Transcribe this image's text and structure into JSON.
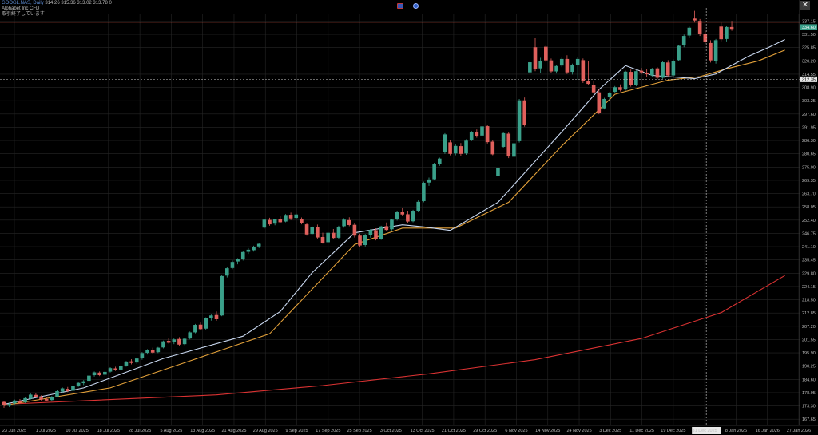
{
  "header": {
    "symbol": "GOOGL.NAS",
    "timeframe": "Daily",
    "ohlc": "314.26 315.36 313.02 313.78 0",
    "name": "Alphabet Inc CFD",
    "status": "取引終了しています"
  },
  "icons": [
    "flag-icon",
    "clock-icon",
    "close-icon"
  ],
  "colors": {
    "background": "#000000",
    "grid": "#262626",
    "bull": "#3aa08a",
    "bear": "#e0605c",
    "ma_fast": "#c9d8f0",
    "ma_mid": "#e3a13a",
    "ma_slow": "#d93232",
    "crosshair": "#d0d0d0",
    "price_line": "#b94a3a"
  },
  "crosshair": {
    "date": "31 Dec 2025",
    "price": "312.35"
  },
  "last_price_tag": "334.60",
  "top_price_tag": "337.15",
  "y_ticks": [
    "337.15",
    "331.50",
    "325.85",
    "320.20",
    "314.55",
    "308.90",
    "303.25",
    "297.60",
    "291.95",
    "286.30",
    "280.65",
    "275.00",
    "269.35",
    "263.70",
    "258.05",
    "252.40",
    "246.75",
    "241.10",
    "235.45",
    "229.80",
    "224.15",
    "218.50",
    "212.85",
    "207.20",
    "201.55",
    "195.90",
    "190.25",
    "184.60",
    "178.95",
    "173.30",
    "167.65"
  ],
  "x_ticks": [
    "23 Jun 2025",
    "1 Jul 2025",
    "10 Jul 2025",
    "18 Jul 2025",
    "28 Jul 2025",
    "5 Aug 2025",
    "13 Aug 2025",
    "21 Aug 2025",
    "29 Aug 2025",
    "9 Sep 2025",
    "17 Sep 2025",
    "25 Sep 2025",
    "3 Oct 2025",
    "13 Oct 2025",
    "21 Oct 2025",
    "29 Oct 2025",
    "6 Nov 2025",
    "14 Nov 2025",
    "24 Nov 2025",
    "3 Dec 2025",
    "11 Dec 2025",
    "19 Dec 2025",
    "31 Dec 2025",
    "8 Jan 2026",
    "16 Jan 2026",
    "27 Jan 2026"
  ],
  "chart_data": {
    "type": "candlestick",
    "title": "",
    "ylim": [
      165.0,
      340.0
    ],
    "grid": true,
    "candles": [
      [
        175.0,
        175.5,
        172.5,
        173.5
      ],
      [
        173.4,
        174.8,
        172.8,
        174.2
      ],
      [
        174.4,
        176.0,
        173.9,
        175.6
      ],
      [
        175.3,
        176.2,
        174.4,
        174.7
      ],
      [
        174.9,
        177.0,
        174.5,
        176.6
      ],
      [
        176.4,
        178.6,
        176.0,
        178.1
      ],
      [
        178.0,
        178.7,
        176.9,
        177.2
      ],
      [
        177.2,
        177.8,
        175.6,
        176.0
      ],
      [
        176.2,
        176.9,
        175.2,
        175.6
      ],
      [
        175.8,
        177.5,
        175.2,
        177.0
      ],
      [
        177.3,
        180.0,
        177.0,
        179.6
      ],
      [
        179.4,
        181.2,
        178.8,
        180.8
      ],
      [
        180.6,
        181.4,
        179.2,
        179.6
      ],
      [
        179.8,
        182.2,
        179.4,
        181.9
      ],
      [
        182.0,
        183.6,
        181.4,
        183.1
      ],
      [
        183.0,
        184.3,
        182.2,
        183.8
      ],
      [
        184.0,
        186.6,
        183.5,
        186.2
      ],
      [
        186.4,
        188.0,
        185.8,
        187.6
      ],
      [
        187.5,
        188.0,
        186.0,
        186.4
      ],
      [
        186.6,
        188.2,
        185.8,
        187.8
      ],
      [
        187.9,
        189.8,
        187.5,
        189.4
      ],
      [
        189.3,
        190.0,
        188.2,
        188.6
      ],
      [
        188.8,
        190.6,
        188.4,
        190.3
      ],
      [
        190.5,
        192.5,
        190.0,
        192.2
      ],
      [
        192.3,
        193.2,
        191.0,
        191.6
      ],
      [
        191.8,
        193.8,
        191.2,
        193.5
      ],
      [
        193.6,
        196.2,
        193.0,
        195.8
      ],
      [
        195.9,
        197.5,
        195.2,
        197.1
      ],
      [
        197.0,
        198.1,
        195.6,
        196.0
      ],
      [
        196.2,
        198.4,
        195.8,
        198.1
      ],
      [
        198.2,
        201.1,
        197.8,
        200.8
      ],
      [
        201.0,
        202.3,
        199.8,
        200.2
      ],
      [
        200.4,
        202.0,
        199.6,
        201.6
      ],
      [
        201.8,
        202.6,
        199.0,
        199.4
      ],
      [
        199.6,
        202.2,
        199.2,
        201.9
      ],
      [
        202.0,
        205.0,
        201.6,
        204.6
      ],
      [
        204.6,
        208.2,
        204.2,
        207.8
      ],
      [
        207.9,
        208.8,
        205.5,
        206.0
      ],
      [
        206.2,
        211.0,
        205.8,
        210.6
      ],
      [
        210.8,
        212.2,
        209.6,
        211.8
      ],
      [
        212.0,
        213.5,
        209.5,
        210.2
      ],
      [
        211.8,
        229.2,
        211.5,
        228.6
      ],
      [
        228.8,
        232.6,
        228.0,
        231.9
      ],
      [
        232.0,
        235.2,
        231.5,
        234.6
      ],
      [
        234.8,
        236.2,
        233.6,
        235.8
      ],
      [
        235.8,
        239.2,
        235.2,
        238.8
      ],
      [
        238.9,
        240.5,
        238.0,
        239.8
      ],
      [
        239.6,
        241.5,
        239.0,
        241.0
      ],
      [
        241.2,
        242.8,
        240.5,
        242.3
      ],
      [
        249.2,
        252.8,
        248.8,
        252.6
      ],
      [
        252.5,
        253.4,
        250.0,
        250.6
      ],
      [
        250.9,
        253.0,
        250.2,
        252.8
      ],
      [
        252.9,
        254.0,
        251.0,
        251.5
      ],
      [
        251.8,
        255.0,
        251.5,
        254.6
      ],
      [
        254.7,
        255.6,
        252.4,
        253.1
      ],
      [
        253.3,
        255.2,
        252.8,
        254.8
      ],
      [
        252.8,
        253.5,
        250.6,
        251.2
      ],
      [
        250.6,
        251.2,
        245.8,
        246.3
      ],
      [
        246.5,
        249.8,
        246.0,
        249.4
      ],
      [
        249.5,
        250.5,
        244.5,
        245.0
      ],
      [
        245.2,
        247.0,
        242.4,
        242.8
      ],
      [
        243.0,
        247.4,
        242.5,
        247.0
      ],
      [
        247.0,
        248.6,
        244.3,
        244.8
      ],
      [
        244.9,
        250.0,
        244.5,
        249.6
      ],
      [
        249.8,
        253.2,
        249.2,
        252.6
      ],
      [
        252.4,
        253.6,
        249.8,
        250.3
      ],
      [
        250.4,
        251.2,
        245.0,
        245.8
      ],
      [
        245.8,
        246.6,
        241.0,
        241.6
      ],
      [
        241.8,
        246.5,
        241.2,
        246.0
      ],
      [
        246.2,
        248.6,
        244.9,
        248.2
      ],
      [
        248.1,
        248.9,
        243.8,
        244.3
      ],
      [
        244.5,
        250.0,
        244.0,
        249.7
      ],
      [
        249.8,
        251.4,
        247.6,
        248.2
      ],
      [
        248.5,
        253.0,
        248.0,
        252.6
      ],
      [
        252.8,
        256.4,
        252.2,
        255.9
      ],
      [
        256.0,
        257.6,
        254.2,
        254.8
      ],
      [
        254.9,
        256.4,
        251.2,
        251.8
      ],
      [
        251.9,
        256.8,
        251.5,
        256.4
      ],
      [
        256.4,
        260.8,
        256.0,
        260.2
      ],
      [
        260.5,
        268.8,
        260.0,
        268.3
      ],
      [
        268.4,
        270.5,
        267.0,
        269.7
      ],
      [
        269.8,
        276.8,
        269.3,
        276.2
      ],
      [
        276.3,
        279.0,
        275.5,
        278.6
      ],
      [
        281.2,
        289.4,
        280.6,
        288.9
      ],
      [
        285.5,
        286.4,
        280.0,
        280.6
      ],
      [
        280.8,
        284.6,
        280.0,
        284.0
      ],
      [
        283.9,
        285.2,
        279.8,
        280.6
      ],
      [
        280.8,
        286.8,
        280.2,
        286.2
      ],
      [
        286.5,
        290.4,
        286.0,
        289.9
      ],
      [
        290.0,
        291.0,
        287.5,
        288.2
      ],
      [
        288.4,
        292.8,
        288.0,
        292.3
      ],
      [
        292.4,
        293.0,
        285.0,
        285.6
      ],
      [
        285.8,
        286.4,
        280.0,
        280.4
      ],
      [
        271.2,
        275.0,
        270.6,
        274.5
      ],
      [
        283.6,
        290.0,
        283.0,
        289.4
      ],
      [
        289.2,
        290.0,
        278.8,
        279.5
      ],
      [
        279.4,
        285.8,
        278.0,
        285.1
      ],
      [
        286.0,
        304.0,
        285.4,
        303.4
      ],
      [
        303.4,
        304.6,
        292.2,
        293.0
      ],
      [
        315.3,
        320.2,
        314.6,
        319.6
      ],
      [
        326.0,
        330.0,
        315.8,
        316.6
      ],
      [
        317.0,
        321.5,
        315.2,
        320.0
      ],
      [
        326.2,
        327.0,
        319.6,
        320.4
      ],
      [
        320.4,
        321.2,
        315.0,
        315.7
      ],
      [
        315.7,
        318.5,
        314.8,
        318.0
      ],
      [
        318.2,
        321.6,
        317.5,
        321.0
      ],
      [
        321.0,
        322.6,
        314.6,
        315.3
      ],
      [
        315.5,
        319.0,
        314.4,
        318.5
      ],
      [
        318.5,
        321.8,
        312.2,
        321.0
      ],
      [
        320.5,
        321.2,
        310.8,
        311.8
      ],
      [
        311.8,
        320.0,
        309.8,
        310.4
      ],
      [
        310.0,
        311.5,
        306.4,
        306.8
      ],
      [
        306.8,
        308.2,
        297.5,
        298.2
      ],
      [
        300.0,
        304.5,
        299.5,
        304.0
      ],
      [
        305.0,
        307.0,
        303.0,
        306.5
      ],
      [
        307.0,
        309.5,
        306.5,
        309.0
      ],
      [
        309.0,
        310.2,
        307.2,
        307.8
      ],
      [
        308.0,
        316.0,
        307.5,
        315.6
      ],
      [
        315.5,
        316.5,
        309.2,
        309.8
      ],
      [
        310.0,
        316.2,
        309.4,
        315.8
      ],
      [
        316.0,
        317.2,
        314.6,
        315.3
      ],
      [
        315.2,
        316.8,
        313.5,
        314.5
      ],
      [
        314.0,
        317.2,
        313.2,
        316.9
      ],
      [
        317.0,
        317.5,
        312.5,
        313.0
      ],
      [
        313.0,
        320.0,
        312.5,
        319.6
      ],
      [
        319.5,
        320.5,
        313.5,
        314.0
      ],
      [
        314.0,
        320.8,
        313.0,
        320.2
      ],
      [
        320.5,
        327.0,
        320.0,
        326.6
      ],
      [
        326.8,
        331.4,
        326.0,
        330.8
      ],
      [
        331.0,
        334.8,
        330.2,
        334.3
      ],
      [
        338.2,
        341.5,
        336.5,
        337.4
      ],
      [
        337.2,
        338.0,
        330.8,
        331.6
      ],
      [
        331.5,
        333.0,
        327.5,
        328.2
      ],
      [
        327.8,
        329.0,
        319.5,
        320.4
      ],
      [
        320.0,
        329.5,
        319.0,
        329.0
      ],
      [
        334.8,
        336.5,
        328.5,
        329.4
      ],
      [
        329.5,
        335.0,
        328.5,
        334.6
      ],
      [
        334.6,
        337.2,
        333.0,
        333.8
      ]
    ],
    "ma_fast": [
      [
        0,
        174.0
      ],
      [
        15,
        181.0
      ],
      [
        30,
        193.5
      ],
      [
        45,
        203.0
      ],
      [
        52,
        213.5
      ],
      [
        58,
        230.0
      ],
      [
        66,
        247.0
      ],
      [
        75,
        250.4
      ],
      [
        79,
        249.5
      ],
      [
        84,
        248.0
      ],
      [
        93,
        260.0
      ],
      [
        105,
        290.0
      ],
      [
        112,
        308.0
      ],
      [
        117,
        318.2
      ],
      [
        122,
        314.0
      ],
      [
        127,
        313.2
      ],
      [
        130,
        312.6
      ],
      [
        134,
        314.6
      ],
      [
        140,
        322.0
      ],
      [
        144,
        326.0
      ],
      [
        147,
        329.3
      ]
    ],
    "ma_mid": [
      [
        0,
        173.5
      ],
      [
        20,
        181.0
      ],
      [
        35,
        192.5
      ],
      [
        50,
        204.0
      ],
      [
        58,
        223.0
      ],
      [
        66,
        242.0
      ],
      [
        75,
        249.0
      ],
      [
        85,
        249.0
      ],
      [
        95,
        260.0
      ],
      [
        105,
        284.0
      ],
      [
        115,
        306.0
      ],
      [
        125,
        312.0
      ],
      [
        131,
        313.5
      ],
      [
        136,
        316.8
      ],
      [
        142,
        320.2
      ],
      [
        147,
        324.8
      ]
    ],
    "ma_slow": [
      [
        0,
        174.0
      ],
      [
        40,
        178.0
      ],
      [
        60,
        182.0
      ],
      [
        80,
        187.0
      ],
      [
        100,
        193.0
      ],
      [
        120,
        202.0
      ],
      [
        135,
        213.0
      ],
      [
        147,
        228.8
      ]
    ]
  }
}
